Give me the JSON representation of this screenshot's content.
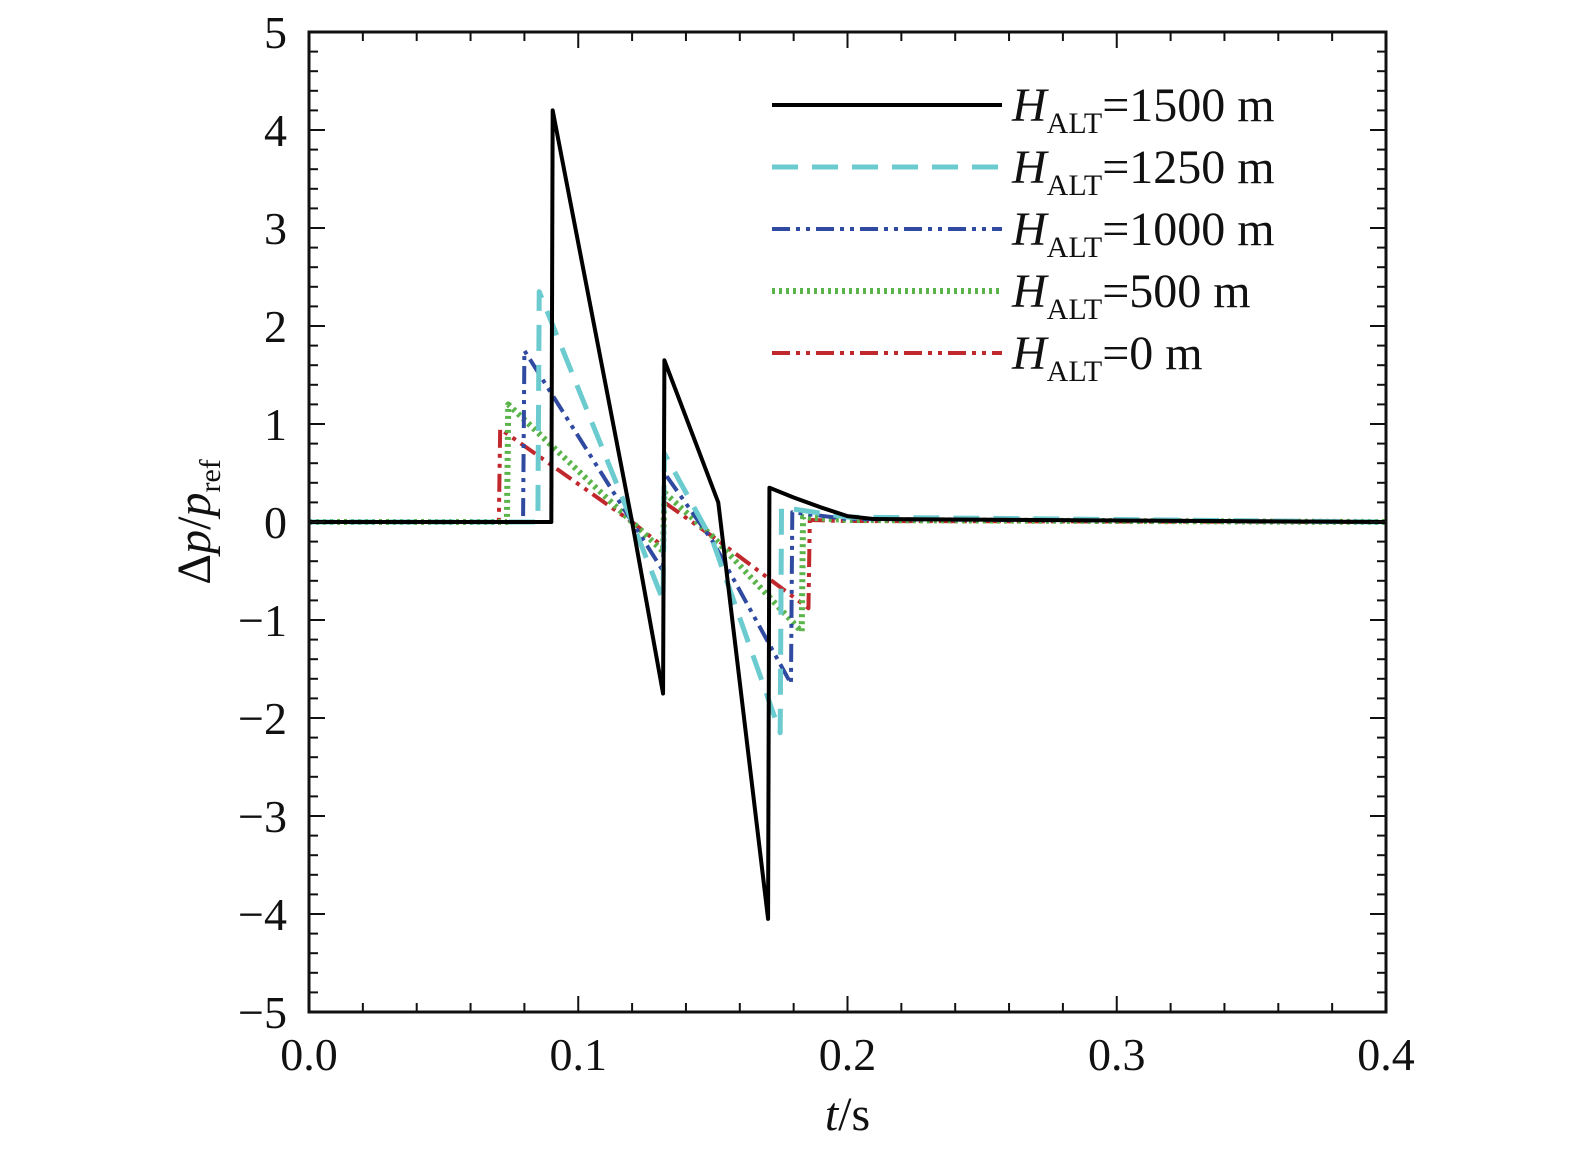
{
  "chart_data": {
    "type": "line",
    "title": "",
    "xlabel": {
      "var": "t",
      "unit": "/s"
    },
    "ylabel": {
      "delta": "Δ",
      "num": "p",
      "slash": "/",
      "den": "p",
      "den_sub": "ref"
    },
    "xlim": [
      0.0,
      0.4
    ],
    "ylim": [
      -5,
      5
    ],
    "x_ticks": [
      0.0,
      0.1,
      0.2,
      0.3,
      0.4
    ],
    "x_tick_labels": [
      "0.0",
      "0.1",
      "0.2",
      "0.3",
      "0.4"
    ],
    "y_ticks": [
      -5,
      -4,
      -3,
      -2,
      -1,
      0,
      1,
      2,
      3,
      4,
      5
    ],
    "y_tick_labels": [
      "−5",
      "−4",
      "−3",
      "−2",
      "−1",
      "0",
      "1",
      "2",
      "3",
      "4",
      "5"
    ],
    "grid": false,
    "legend_position": "top-right",
    "series": [
      {
        "name": "H_ALT=1500 m",
        "label_var": "H",
        "label_sub": "ALT",
        "label_rest": "=1500 m",
        "color": "#000000",
        "dash": "solid",
        "x": [
          0.0,
          0.09,
          0.0905,
          0.12,
          0.1315,
          0.132,
          0.152,
          0.1705,
          0.171,
          0.18,
          0.19,
          0.2,
          0.21,
          0.4
        ],
        "y": [
          0.0,
          0.0,
          4.2,
          0.0,
          -1.75,
          1.65,
          0.2,
          -4.05,
          0.35,
          0.25,
          0.15,
          0.06,
          0.03,
          0.0
        ]
      },
      {
        "name": "H_ALT=1250 m",
        "label_var": "H",
        "label_sub": "ALT",
        "label_rest": "=1250 m",
        "color": "#6ccbcf",
        "dash": "long-dash",
        "x": [
          0.0,
          0.085,
          0.0855,
          0.12,
          0.1315,
          0.132,
          0.15,
          0.175,
          0.1755,
          0.2,
          0.4
        ],
        "y": [
          0.0,
          0.0,
          2.35,
          0.0,
          -0.8,
          0.7,
          -0.2,
          -2.15,
          0.15,
          0.05,
          0.0
        ]
      },
      {
        "name": "H_ALT=1000 m",
        "label_var": "H",
        "label_sub": "ALT",
        "label_rest": "=1000 m",
        "color": "#2f4aa0",
        "dash": "dash-dot-dot",
        "x": [
          0.0,
          0.0795,
          0.08,
          0.12,
          0.1315,
          0.132,
          0.15,
          0.179,
          0.1795,
          0.2,
          0.4
        ],
        "y": [
          0.0,
          0.0,
          1.75,
          0.0,
          -0.5,
          0.5,
          -0.2,
          -1.65,
          0.1,
          0.03,
          0.0
        ]
      },
      {
        "name": "H_ALT=500 m",
        "label_var": "H",
        "label_sub": "ALT",
        "label_rest": "=500 m",
        "color": "#5ab44a",
        "dash": "dotted",
        "x": [
          0.0,
          0.0735,
          0.074,
          0.12,
          0.1315,
          0.132,
          0.15,
          0.183,
          0.1835,
          0.2,
          0.4
        ],
        "y": [
          0.0,
          0.0,
          1.2,
          0.0,
          -0.3,
          0.3,
          -0.15,
          -1.12,
          0.05,
          0.02,
          0.0
        ]
      },
      {
        "name": "H_ALT=0 m",
        "label_var": "H",
        "label_sub": "ALT",
        "label_rest": "=0 m",
        "color": "#c0282d",
        "dash": "dash-dot-dot",
        "x": [
          0.0,
          0.0705,
          0.071,
          0.12,
          0.1315,
          0.132,
          0.15,
          0.1855,
          0.186,
          0.2,
          0.4
        ],
        "y": [
          0.0,
          0.0,
          0.95,
          0.0,
          -0.25,
          0.2,
          -0.15,
          -0.88,
          0.02,
          0.01,
          0.0
        ]
      }
    ]
  }
}
